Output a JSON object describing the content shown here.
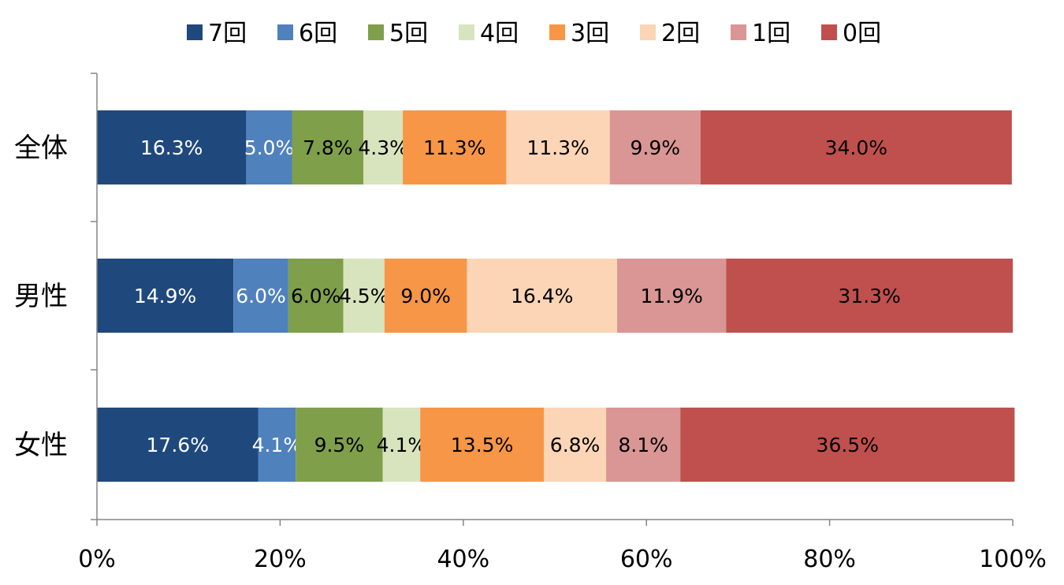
{
  "chart_data": {
    "type": "bar",
    "orientation": "horizontal",
    "stacked": "percent",
    "title": "",
    "xlabel": "",
    "ylabel": "",
    "xlim": [
      0,
      100
    ],
    "x_ticks": [
      "0%",
      "20%",
      "40%",
      "60%",
      "80%",
      "100%"
    ],
    "grid": false,
    "legend_position": "top",
    "categories": [
      "全体",
      "男性",
      "女性"
    ],
    "series": [
      {
        "name": "7回",
        "color": "#1F497D",
        "label_color": "#FFFFFF",
        "values": [
          16.3,
          14.9,
          17.6
        ]
      },
      {
        "name": "6回",
        "color": "#4F81BD",
        "label_color": "#FFFFFF",
        "values": [
          5.0,
          6.0,
          4.1
        ]
      },
      {
        "name": "5回",
        "color": "#7F9F4B",
        "label_color": "#000000",
        "values": [
          7.8,
          6.0,
          9.5
        ]
      },
      {
        "name": "4回",
        "color": "#D7E4BD",
        "label_color": "#000000",
        "values": [
          4.3,
          4.5,
          4.1
        ]
      },
      {
        "name": "3回",
        "color": "#F79646",
        "label_color": "#000000",
        "values": [
          11.3,
          9.0,
          13.5
        ]
      },
      {
        "name": "2回",
        "color": "#FBD5B5",
        "label_color": "#000000",
        "values": [
          11.3,
          16.4,
          6.8
        ]
      },
      {
        "name": "1回",
        "color": "#D99694",
        "label_color": "#000000",
        "values": [
          9.9,
          11.9,
          8.1
        ]
      },
      {
        "name": "0回",
        "color": "#C0504D",
        "label_color": "#000000",
        "values": [
          34.0,
          31.3,
          36.5
        ]
      }
    ],
    "data_labels": [
      [
        "16.3%",
        "5.0%",
        "7.8%",
        "4.3%",
        "11.3%",
        "11.3%",
        "9.9%",
        "34.0%"
      ],
      [
        "14.9%",
        "6.0%",
        "6.0%",
        "4.5%",
        "9.0%",
        "16.4%",
        "11.9%",
        "31.3%"
      ],
      [
        "17.6%",
        "4.1%",
        "9.5%",
        "4.1%",
        "13.5%",
        "6.8%",
        "8.1%",
        "36.5%"
      ]
    ]
  }
}
